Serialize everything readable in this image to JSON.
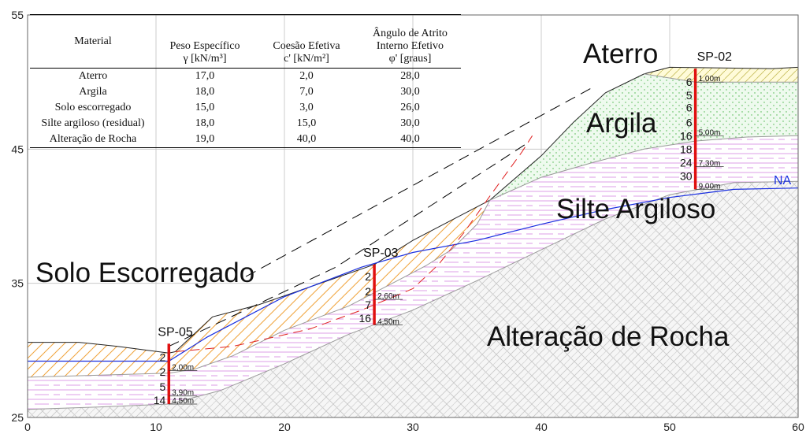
{
  "table": {
    "headers": [
      {
        "line1": "Material",
        "line2": ""
      },
      {
        "line1": "Peso Específico",
        "line2": "γ [kN/m³]"
      },
      {
        "line1": "Coesão Efetiva",
        "line2": "c' [kN/m²]"
      },
      {
        "line1": "Ângulo de Atrito Interno Efetivo",
        "line2": "φ' [graus]"
      }
    ],
    "rows": [
      [
        "Aterro",
        "17,0",
        "2,0",
        "28,0"
      ],
      [
        "Argila",
        "18,0",
        "7,0",
        "30,0"
      ],
      [
        "Solo escorregado",
        "15,0",
        "3,0",
        "26,0"
      ],
      [
        "Silte argiloso (residual)",
        "18,0",
        "15,0",
        "30,0"
      ],
      [
        "Alteração de Rocha",
        "19,0",
        "40,0",
        "40,0"
      ]
    ]
  },
  "axes": {
    "x": {
      "min": 0,
      "max": 60,
      "ticks": [
        "0",
        "10",
        "20",
        "30",
        "40",
        "50",
        "60"
      ]
    },
    "y": {
      "min": 25,
      "max": 55,
      "ticks": [
        "25",
        "35",
        "45",
        "55"
      ]
    }
  },
  "layers": {
    "aterro": "Aterro",
    "argila": "Argila",
    "silte": "Silte Argiloso",
    "solo": "Solo Escorregado",
    "rocha": "Alteração de Rocha"
  },
  "water_table": "NA",
  "boreholes": [
    {
      "id": "SP-02",
      "x": 52,
      "top": 51.0,
      "bottom": 42.0,
      "nspt": [
        {
          "v": "6",
          "z": 50.0
        },
        {
          "v": "5",
          "z": 49.0
        },
        {
          "v": "6",
          "z": 48.1
        },
        {
          "v": "6",
          "z": 47.0
        },
        {
          "v": "16",
          "z": 46.0
        },
        {
          "v": "18",
          "z": 45.0
        },
        {
          "v": "24",
          "z": 44.0
        },
        {
          "v": "30",
          "z": 43.0
        }
      ],
      "depths": [
        {
          "t": "1,00m",
          "z": 50.0
        },
        {
          "t": "5,00m",
          "z": 46.0
        },
        {
          "t": "7,30m",
          "z": 43.7
        },
        {
          "t": "9,00m",
          "z": 42.0
        }
      ]
    },
    {
      "id": "SP-03",
      "x": 27,
      "top": 36.4,
      "bottom": 31.9,
      "nspt": [
        {
          "v": "2",
          "z": 35.5
        },
        {
          "v": "2",
          "z": 34.4
        },
        {
          "v": "7",
          "z": 33.4
        },
        {
          "v": "16",
          "z": 32.4
        }
      ],
      "depths": [
        {
          "t": "2,60m",
          "z": 33.8
        },
        {
          "t": "4,50m",
          "z": 31.9
        }
      ]
    },
    {
      "id": "SP-05",
      "x": 11,
      "top": 30.5,
      "bottom": 26.0,
      "nspt": [
        {
          "v": "2",
          "z": 29.5
        },
        {
          "v": "2",
          "z": 28.4
        },
        {
          "v": "5",
          "z": 27.3
        },
        {
          "v": "14",
          "z": 26.3
        }
      ],
      "depths": [
        {
          "t": "2,00m",
          "z": 28.5
        },
        {
          "t": "3,90m",
          "z": 26.6
        },
        {
          "t": "4,50m",
          "z": 26.0
        }
      ]
    }
  ]
}
